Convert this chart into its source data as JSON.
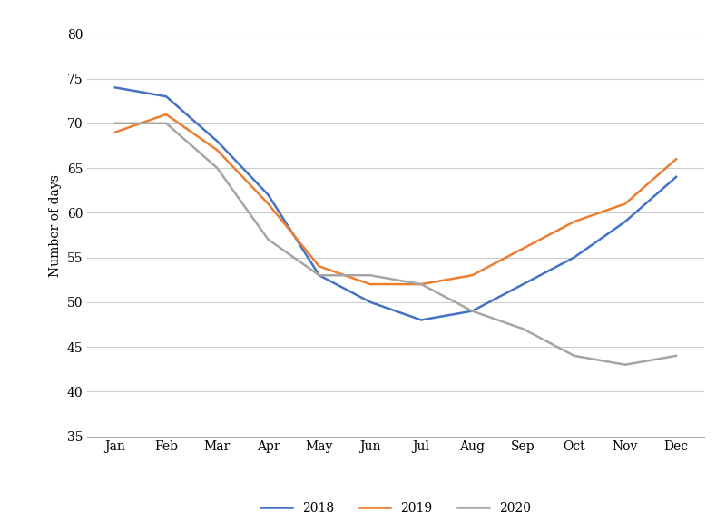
{
  "months": [
    "Jan",
    "Feb",
    "Mar",
    "Apr",
    "May",
    "Jun",
    "Jul",
    "Aug",
    "Sep",
    "Oct",
    "Nov",
    "Dec"
  ],
  "series": {
    "2018": [
      74,
      73,
      68,
      62,
      53,
      50,
      48,
      49,
      52,
      55,
      59,
      64
    ],
    "2019": [
      69,
      71,
      67,
      61,
      54,
      52,
      52,
      53,
      56,
      59,
      61,
      66
    ],
    "2020": [
      70,
      70,
      65,
      57,
      53,
      53,
      52,
      49,
      47,
      44,
      43,
      44
    ]
  },
  "colors": {
    "2018": "#4472C4",
    "2019": "#ED7D31",
    "2020": "#A5A5A5"
  },
  "ylabel": "Number of days",
  "ylim": [
    35,
    82
  ],
  "yticks": [
    35,
    40,
    45,
    50,
    55,
    60,
    65,
    70,
    75,
    80
  ],
  "legend_labels": [
    "2018",
    "2019",
    "2020"
  ],
  "line_width": 1.8,
  "background_color": "#ffffff",
  "grid_color": "#cccccc"
}
